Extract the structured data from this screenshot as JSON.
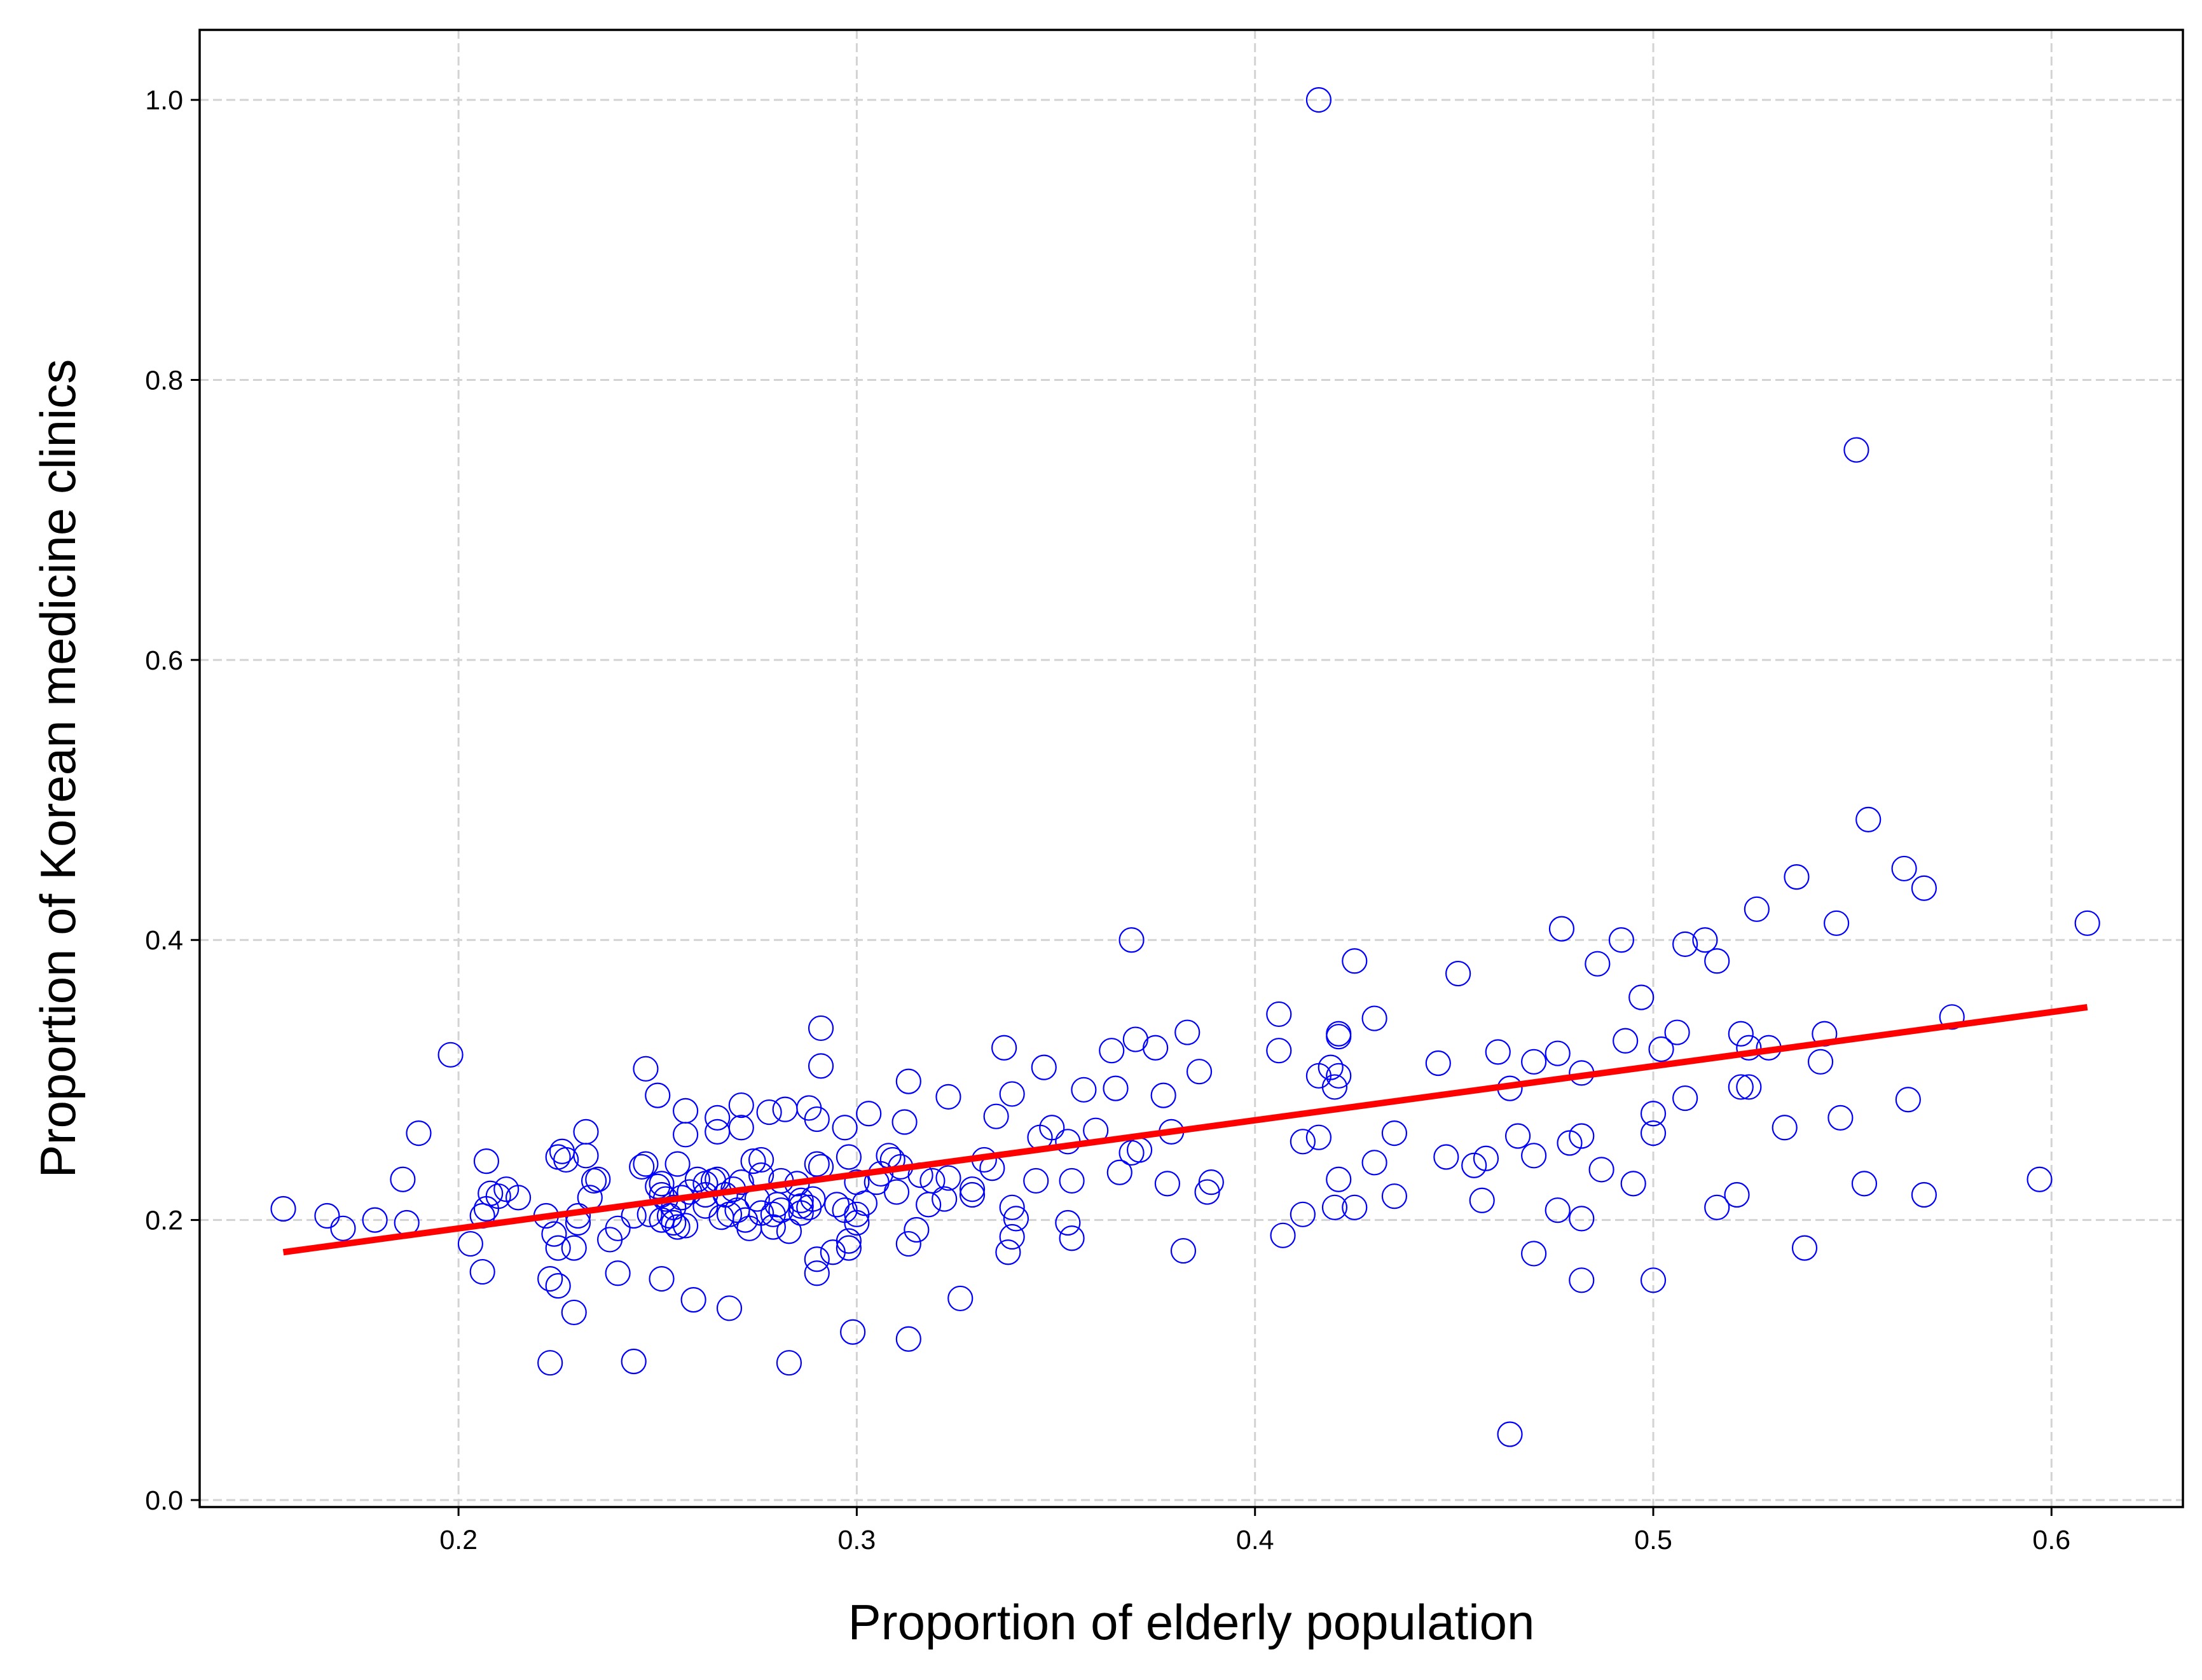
{
  "chart_data": {
    "type": "scatter",
    "xlabel": "Proportion of elderly population",
    "ylabel": "Proportion of Korean medicine clinics",
    "xlim": [
      0.135,
      0.633
    ],
    "ylim": [
      -0.005,
      1.05
    ],
    "x_ticks": [
      0.2,
      0.3,
      0.4,
      0.5,
      0.6
    ],
    "x_tick_labels": [
      "0.2",
      "0.3",
      "0.4",
      "0.5",
      "0.6"
    ],
    "y_ticks": [
      0.0,
      0.2,
      0.4,
      0.6,
      0.8,
      1.0
    ],
    "y_tick_labels": [
      "0.0",
      "0.2",
      "0.4",
      "0.6",
      "0.8",
      "1.0"
    ],
    "grid": true,
    "point_color": "#0000ff",
    "line_color": "#ff0000",
    "fit_line": {
      "x": [
        0.156,
        0.609
      ],
      "y": [
        0.177,
        0.352
      ]
    },
    "points": [
      [
        0.416,
        1.0
      ],
      [
        0.551,
        0.75
      ],
      [
        0.554,
        0.486
      ],
      [
        0.609,
        0.412
      ],
      [
        0.563,
        0.451
      ],
      [
        0.568,
        0.437
      ],
      [
        0.536,
        0.445
      ],
      [
        0.546,
        0.412
      ],
      [
        0.526,
        0.422
      ],
      [
        0.513,
        0.4
      ],
      [
        0.508,
        0.397
      ],
      [
        0.516,
        0.385
      ],
      [
        0.492,
        0.4
      ],
      [
        0.477,
        0.408
      ],
      [
        0.486,
        0.383
      ],
      [
        0.451,
        0.376
      ],
      [
        0.425,
        0.385
      ],
      [
        0.369,
        0.4
      ],
      [
        0.575,
        0.345
      ],
      [
        0.543,
        0.333
      ],
      [
        0.522,
        0.333
      ],
      [
        0.529,
        0.323
      ],
      [
        0.524,
        0.323
      ],
      [
        0.542,
        0.313
      ],
      [
        0.506,
        0.334
      ],
      [
        0.502,
        0.322
      ],
      [
        0.497,
        0.359
      ],
      [
        0.493,
        0.328
      ],
      [
        0.476,
        0.319
      ],
      [
        0.47,
        0.313
      ],
      [
        0.482,
        0.305
      ],
      [
        0.461,
        0.32
      ],
      [
        0.464,
        0.294
      ],
      [
        0.446,
        0.312
      ],
      [
        0.43,
        0.344
      ],
      [
        0.421,
        0.333
      ],
      [
        0.421,
        0.331
      ],
      [
        0.406,
        0.347
      ],
      [
        0.406,
        0.321
      ],
      [
        0.419,
        0.309
      ],
      [
        0.416,
        0.303
      ],
      [
        0.421,
        0.303
      ],
      [
        0.42,
        0.295
      ],
      [
        0.564,
        0.286
      ],
      [
        0.547,
        0.273
      ],
      [
        0.533,
        0.266
      ],
      [
        0.524,
        0.295
      ],
      [
        0.522,
        0.295
      ],
      [
        0.508,
        0.287
      ],
      [
        0.5,
        0.276
      ],
      [
        0.5,
        0.262
      ],
      [
        0.482,
        0.26
      ],
      [
        0.479,
        0.255
      ],
      [
        0.466,
        0.26
      ],
      [
        0.47,
        0.246
      ],
      [
        0.448,
        0.245
      ],
      [
        0.455,
        0.239
      ],
      [
        0.458,
        0.244
      ],
      [
        0.435,
        0.262
      ],
      [
        0.43,
        0.241
      ],
      [
        0.416,
        0.259
      ],
      [
        0.412,
        0.256
      ],
      [
        0.386,
        0.306
      ],
      [
        0.383,
        0.334
      ],
      [
        0.375,
        0.323
      ],
      [
        0.37,
        0.329
      ],
      [
        0.364,
        0.321
      ],
      [
        0.365,
        0.294
      ],
      [
        0.377,
        0.289
      ],
      [
        0.357,
        0.293
      ],
      [
        0.347,
        0.309
      ],
      [
        0.339,
        0.29
      ],
      [
        0.337,
        0.323
      ],
      [
        0.335,
        0.274
      ],
      [
        0.379,
        0.263
      ],
      [
        0.36,
        0.264
      ],
      [
        0.349,
        0.266
      ],
      [
        0.346,
        0.259
      ],
      [
        0.353,
        0.256
      ],
      [
        0.371,
        0.25
      ],
      [
        0.369,
        0.248
      ],
      [
        0.366,
        0.234
      ],
      [
        0.332,
        0.243
      ],
      [
        0.334,
        0.237
      ],
      [
        0.597,
        0.229
      ],
      [
        0.553,
        0.226
      ],
      [
        0.568,
        0.218
      ],
      [
        0.521,
        0.218
      ],
      [
        0.516,
        0.209
      ],
      [
        0.495,
        0.226
      ],
      [
        0.487,
        0.236
      ],
      [
        0.476,
        0.207
      ],
      [
        0.482,
        0.201
      ],
      [
        0.457,
        0.214
      ],
      [
        0.435,
        0.217
      ],
      [
        0.421,
        0.229
      ],
      [
        0.42,
        0.209
      ],
      [
        0.425,
        0.209
      ],
      [
        0.412,
        0.204
      ],
      [
        0.407,
        0.189
      ],
      [
        0.389,
        0.227
      ],
      [
        0.388,
        0.22
      ],
      [
        0.378,
        0.226
      ],
      [
        0.354,
        0.228
      ],
      [
        0.345,
        0.228
      ],
      [
        0.329,
        0.222
      ],
      [
        0.538,
        0.18
      ],
      [
        0.47,
        0.176
      ],
      [
        0.5,
        0.157
      ],
      [
        0.482,
        0.157
      ],
      [
        0.464,
        0.047
      ],
      [
        0.382,
        0.178
      ],
      [
        0.353,
        0.198
      ],
      [
        0.354,
        0.187
      ],
      [
        0.339,
        0.209
      ],
      [
        0.34,
        0.201
      ],
      [
        0.339,
        0.188
      ],
      [
        0.338,
        0.177
      ],
      [
        0.326,
        0.144
      ],
      [
        0.323,
        0.288
      ],
      [
        0.313,
        0.299
      ],
      [
        0.312,
        0.27
      ],
      [
        0.303,
        0.276
      ],
      [
        0.297,
        0.266
      ],
      [
        0.291,
        0.337
      ],
      [
        0.291,
        0.31
      ],
      [
        0.29,
        0.272
      ],
      [
        0.288,
        0.28
      ],
      [
        0.282,
        0.279
      ],
      [
        0.278,
        0.277
      ],
      [
        0.271,
        0.282
      ],
      [
        0.271,
        0.266
      ],
      [
        0.265,
        0.273
      ],
      [
        0.265,
        0.263
      ],
      [
        0.257,
        0.278
      ],
      [
        0.257,
        0.261
      ],
      [
        0.25,
        0.289
      ],
      [
        0.247,
        0.308
      ],
      [
        0.232,
        0.263
      ],
      [
        0.225,
        0.245
      ],
      [
        0.226,
        0.249
      ],
      [
        0.232,
        0.246
      ],
      [
        0.198,
        0.318
      ],
      [
        0.19,
        0.262
      ],
      [
        0.207,
        0.242
      ],
      [
        0.235,
        0.229
      ],
      [
        0.247,
        0.24
      ],
      [
        0.255,
        0.24
      ],
      [
        0.276,
        0.243
      ],
      [
        0.274,
        0.242
      ],
      [
        0.29,
        0.24
      ],
      [
        0.291,
        0.238
      ],
      [
        0.298,
        0.245
      ],
      [
        0.3,
        0.227
      ],
      [
        0.306,
        0.233
      ],
      [
        0.308,
        0.246
      ],
      [
        0.311,
        0.238
      ],
      [
        0.316,
        0.232
      ],
      [
        0.319,
        0.228
      ],
      [
        0.323,
        0.23
      ],
      [
        0.322,
        0.215
      ],
      [
        0.318,
        0.211
      ],
      [
        0.31,
        0.22
      ],
      [
        0.305,
        0.227
      ],
      [
        0.3,
        0.204
      ],
      [
        0.297,
        0.207
      ],
      [
        0.295,
        0.211
      ],
      [
        0.289,
        0.215
      ],
      [
        0.285,
        0.226
      ],
      [
        0.286,
        0.205
      ],
      [
        0.28,
        0.211
      ],
      [
        0.279,
        0.204
      ],
      [
        0.276,
        0.205
      ],
      [
        0.275,
        0.215
      ],
      [
        0.271,
        0.227
      ],
      [
        0.269,
        0.222
      ],
      [
        0.267,
        0.218
      ],
      [
        0.265,
        0.229
      ],
      [
        0.262,
        0.226
      ],
      [
        0.26,
        0.229
      ],
      [
        0.258,
        0.22
      ],
      [
        0.256,
        0.216
      ],
      [
        0.253,
        0.203
      ],
      [
        0.251,
        0.226
      ],
      [
        0.25,
        0.224
      ],
      [
        0.252,
        0.215
      ],
      [
        0.248,
        0.204
      ],
      [
        0.254,
        0.198
      ],
      [
        0.257,
        0.196
      ],
      [
        0.255,
        0.195
      ],
      [
        0.251,
        0.2
      ],
      [
        0.262,
        0.218
      ],
      [
        0.266,
        0.202
      ],
      [
        0.268,
        0.204
      ],
      [
        0.27,
        0.207
      ],
      [
        0.272,
        0.2
      ],
      [
        0.273,
        0.194
      ],
      [
        0.279,
        0.195
      ],
      [
        0.283,
        0.192
      ],
      [
        0.281,
        0.207
      ],
      [
        0.286,
        0.21
      ],
      [
        0.29,
        0.162
      ],
      [
        0.29,
        0.172
      ],
      [
        0.294,
        0.177
      ],
      [
        0.298,
        0.185
      ],
      [
        0.298,
        0.18
      ],
      [
        0.313,
        0.183
      ],
      [
        0.315,
        0.193
      ],
      [
        0.299,
        0.12
      ],
      [
        0.313,
        0.115
      ],
      [
        0.283,
        0.098
      ],
      [
        0.268,
        0.137
      ],
      [
        0.259,
        0.143
      ],
      [
        0.251,
        0.158
      ],
      [
        0.244,
        0.099
      ],
      [
        0.24,
        0.162
      ],
      [
        0.238,
        0.186
      ],
      [
        0.24,
        0.194
      ],
      [
        0.233,
        0.216
      ],
      [
        0.234,
        0.228
      ],
      [
        0.23,
        0.203
      ],
      [
        0.23,
        0.198
      ],
      [
        0.229,
        0.18
      ],
      [
        0.225,
        0.18
      ],
      [
        0.224,
        0.19
      ],
      [
        0.222,
        0.203
      ],
      [
        0.223,
        0.158
      ],
      [
        0.225,
        0.153
      ],
      [
        0.229,
        0.134
      ],
      [
        0.223,
        0.098
      ],
      [
        0.215,
        0.216
      ],
      [
        0.212,
        0.222
      ],
      [
        0.208,
        0.219
      ],
      [
        0.207,
        0.208
      ],
      [
        0.206,
        0.203
      ],
      [
        0.206,
        0.163
      ],
      [
        0.203,
        0.183
      ],
      [
        0.186,
        0.229
      ],
      [
        0.187,
        0.198
      ],
      [
        0.179,
        0.2
      ],
      [
        0.171,
        0.194
      ],
      [
        0.167,
        0.203
      ],
      [
        0.156,
        0.208
      ],
      [
        0.21,
        0.217
      ],
      [
        0.227,
        0.243
      ],
      [
        0.251,
        0.218
      ],
      [
        0.254,
        0.209
      ],
      [
        0.262,
        0.21
      ],
      [
        0.244,
        0.203
      ],
      [
        0.246,
        0.238
      ],
      [
        0.281,
        0.228
      ],
      [
        0.302,
        0.212
      ],
      [
        0.309,
        0.243
      ],
      [
        0.276,
        0.232
      ],
      [
        0.264,
        0.228
      ],
      [
        0.329,
        0.218
      ],
      [
        0.286,
        0.214
      ],
      [
        0.3,
        0.198
      ],
      [
        0.288,
        0.209
      ]
    ]
  }
}
